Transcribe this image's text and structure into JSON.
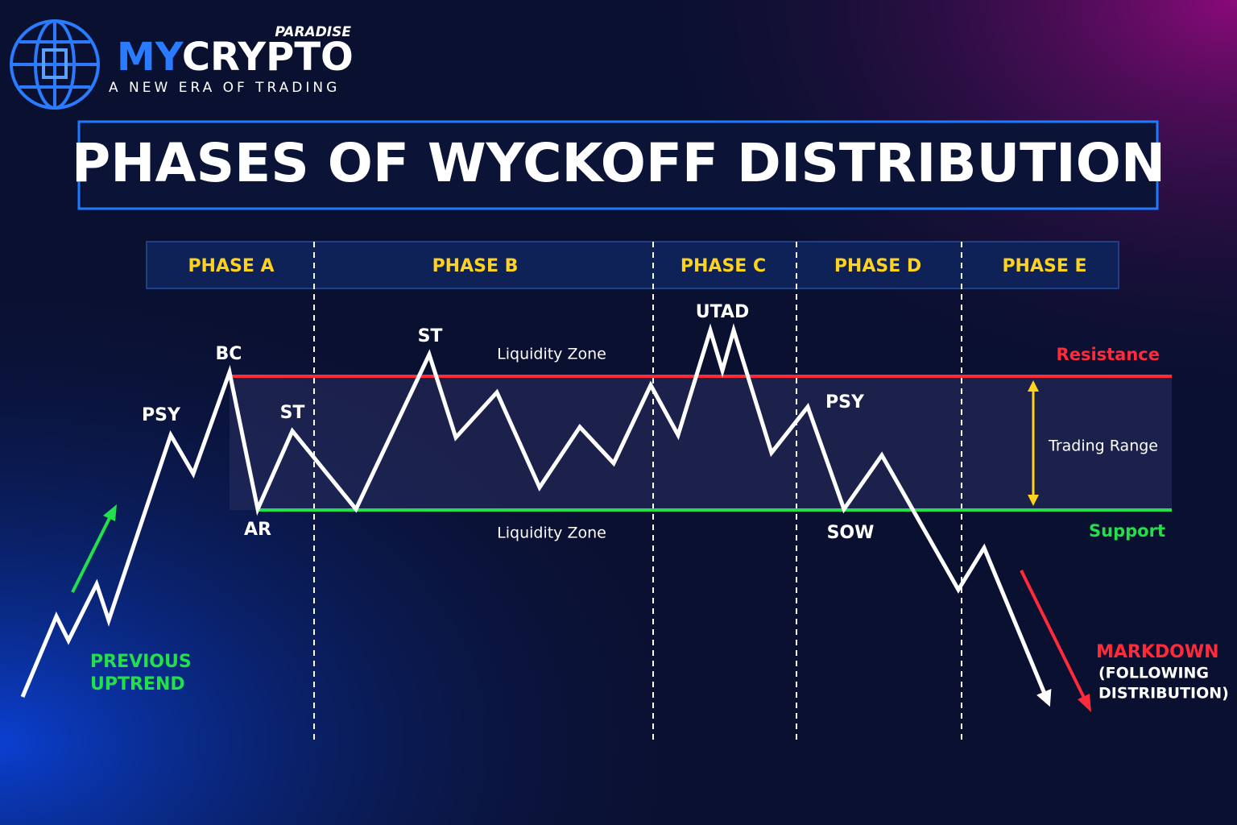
{
  "brand": {
    "name_prefix": "MY",
    "name_suffix": "CRYPTO",
    "tag": "PARADISE",
    "tagline": "A NEW ERA OF TRADING"
  },
  "title": "PHASES OF WYCKOFF DISTRIBUTION",
  "phases": [
    "PHASE A",
    "PHASE B",
    "PHASE C",
    "PHASE D",
    "PHASE E"
  ],
  "events": [
    "PSY",
    "BC",
    "AR",
    "ST",
    "ST",
    "UTAD",
    "PSY",
    "SOW"
  ],
  "levels": {
    "resistance": "Resistance",
    "support": "Support",
    "liquidity_top": "Liquidity Zone",
    "liquidity_bottom": "Liquidity Zone",
    "range": "Trading Range"
  },
  "trend": {
    "previous": [
      "PREVIOUS",
      "UPTREND"
    ],
    "markdown": "MARKDOWN",
    "markdown_note": [
      "(FOLLOWING",
      "DISTRIBUTION)"
    ]
  }
}
